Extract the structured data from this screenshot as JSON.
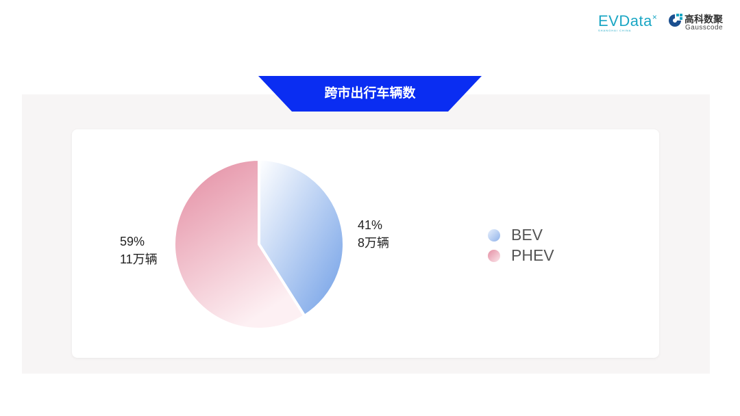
{
  "logos": {
    "evdata": "EVDatа",
    "evdata_sub": "SHANGHAI CHINA",
    "gausscode_cn": "高科数聚",
    "gausscode_en": "Gausscode"
  },
  "title": "跨市出行车辆数",
  "colors": {
    "banner": "#0a2df2",
    "panel": "#f7f5f5"
  },
  "chart_data": {
    "type": "pie",
    "title": "跨市出行车辆数",
    "legend_position": "right",
    "slices": [
      {
        "name": "BEV",
        "percent": 41,
        "value_label": "8万辆",
        "percent_label": "41%",
        "color_from": "#ffffff",
        "color_to": "#6f9ee6"
      },
      {
        "name": "PHEV",
        "percent": 59,
        "value_label": "11万辆",
        "percent_label": "59%",
        "color_from": "#e38aa0",
        "color_to": "#fdf0f3"
      }
    ]
  }
}
